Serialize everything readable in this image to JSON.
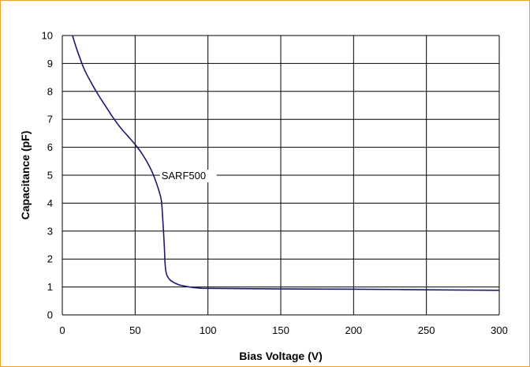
{
  "chart_data": {
    "type": "line",
    "title": "",
    "xlabel": "Bias Voltage (V)",
    "ylabel": "Capacitance (pF)",
    "xlim": [
      0,
      300
    ],
    "ylim": [
      0,
      10
    ],
    "x_ticks": [
      "0",
      "50",
      "100",
      "150",
      "200",
      "250",
      "300"
    ],
    "y_ticks": [
      "0",
      "1",
      "2",
      "3",
      "4",
      "5",
      "6",
      "7",
      "8",
      "9",
      "10"
    ],
    "grid": true,
    "legend": "none",
    "colors": {
      "line": "#1a1a6e",
      "grid": "#000000",
      "frame": "#f0a030"
    },
    "annotation": {
      "text": "SARF500",
      "x": 67,
      "y": 5.0
    },
    "series": [
      {
        "name": "SARF500",
        "x": [
          7,
          10,
          15,
          20,
          25,
          30,
          35,
          40,
          45,
          50,
          55,
          60,
          63,
          66,
          68,
          69,
          70,
          70.5,
          71,
          72,
          74,
          77,
          80,
          85,
          90,
          95,
          100,
          150,
          200,
          250,
          300
        ],
        "y": [
          10.0,
          9.5,
          8.8,
          8.3,
          7.85,
          7.45,
          7.05,
          6.7,
          6.4,
          6.1,
          5.75,
          5.3,
          4.95,
          4.5,
          4.1,
          3.4,
          2.5,
          1.9,
          1.6,
          1.4,
          1.25,
          1.15,
          1.08,
          1.02,
          0.98,
          0.96,
          0.95,
          0.93,
          0.92,
          0.9,
          0.88
        ]
      }
    ]
  }
}
